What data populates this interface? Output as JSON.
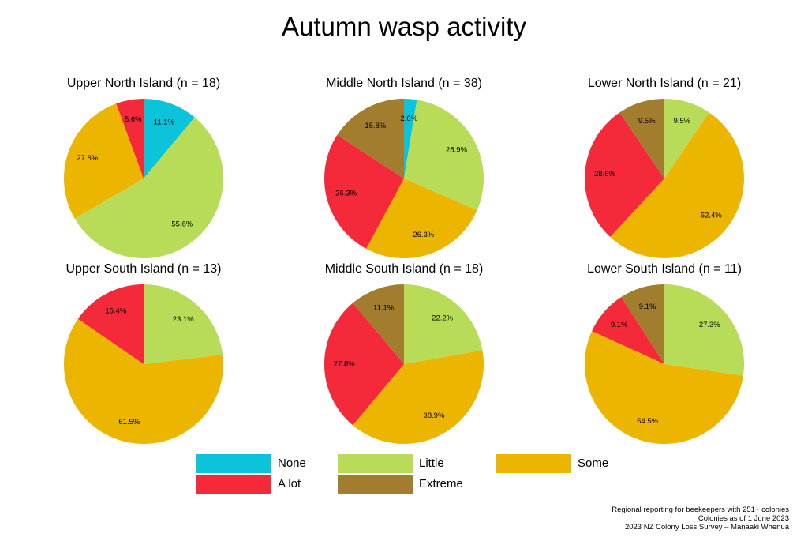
{
  "title": "Autumn wasp activity",
  "categories": [
    "None",
    "Little",
    "Some",
    "Extreme",
    "A lot"
  ],
  "colors": {
    "None": "#0bc4d9",
    "Little": "#b8dc57",
    "Some": "#ebb500",
    "Extreme": "#a37d2e",
    "A lot": "#f42a3a"
  },
  "legend": {
    "none": "None",
    "little": "Little",
    "some": "Some",
    "a_lot": "A lot",
    "extreme": "Extreme"
  },
  "footer": {
    "line1": "Regional reporting for beekeepers with 251+ colonies",
    "line2": "Colonies as of 1 June 2023",
    "line3": "2023 NZ Colony Loss Survey – Manaaki Whenua"
  },
  "chart_data": [
    {
      "type": "pie",
      "title": "Upper North Island (n = 18)",
      "slices": [
        {
          "label": "None",
          "value": 11.1,
          "text": "11.1%"
        },
        {
          "label": "Little",
          "value": 55.6,
          "text": "55.6%"
        },
        {
          "label": "Some",
          "value": 27.8,
          "text": "27.8%"
        },
        {
          "label": "A lot",
          "value": 5.6,
          "text": "5.6%"
        }
      ]
    },
    {
      "type": "pie",
      "title": "Middle North Island (n = 38)",
      "slices": [
        {
          "label": "None",
          "value": 2.6,
          "text": "2.6%"
        },
        {
          "label": "Little",
          "value": 28.9,
          "text": "28.9%"
        },
        {
          "label": "Some",
          "value": 26.3,
          "text": "26.3%"
        },
        {
          "label": "A lot",
          "value": 26.3,
          "text": "26.3%"
        },
        {
          "label": "Extreme",
          "value": 15.8,
          "text": "15.8%"
        }
      ]
    },
    {
      "type": "pie",
      "title": "Lower North Island (n = 21)",
      "slices": [
        {
          "label": "Little",
          "value": 9.5,
          "text": "9.5%"
        },
        {
          "label": "Some",
          "value": 52.4,
          "text": "52.4%"
        },
        {
          "label": "A lot",
          "value": 28.6,
          "text": "28.6%"
        },
        {
          "label": "Extreme",
          "value": 9.5,
          "text": "9.5%"
        }
      ]
    },
    {
      "type": "pie",
      "title": "Upper South Island (n = 13)",
      "slices": [
        {
          "label": "Little",
          "value": 23.1,
          "text": "23.1%"
        },
        {
          "label": "Some",
          "value": 61.5,
          "text": "61.5%"
        },
        {
          "label": "A lot",
          "value": 15.4,
          "text": "15.4%"
        }
      ]
    },
    {
      "type": "pie",
      "title": "Middle South Island (n = 18)",
      "slices": [
        {
          "label": "Little",
          "value": 22.2,
          "text": "22.2%"
        },
        {
          "label": "Some",
          "value": 38.9,
          "text": "38.9%"
        },
        {
          "label": "A lot",
          "value": 27.8,
          "text": "27.8%"
        },
        {
          "label": "Extreme",
          "value": 11.1,
          "text": "11.1%"
        }
      ]
    },
    {
      "type": "pie",
      "title": "Lower South Island (n = 11)",
      "slices": [
        {
          "label": "Little",
          "value": 27.3,
          "text": "27.3%"
        },
        {
          "label": "Some",
          "value": 54.5,
          "text": "54.5%"
        },
        {
          "label": "A lot",
          "value": 9.1,
          "text": "9.1%"
        },
        {
          "label": "Extreme",
          "value": 9.1,
          "text": "9.1%"
        }
      ]
    }
  ]
}
